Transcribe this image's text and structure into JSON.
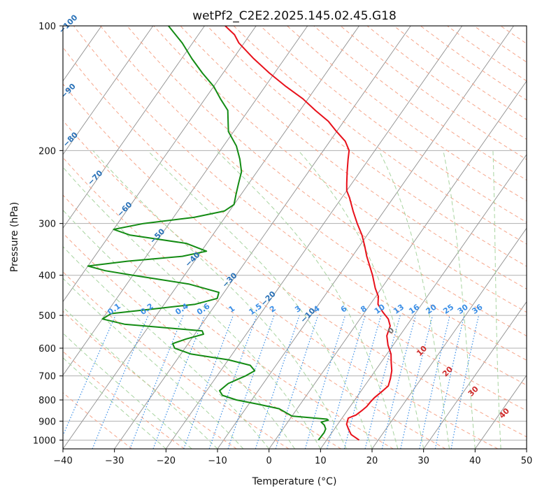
{
  "chart_data": {
    "type": "line",
    "subtype": "skew-t-log-p",
    "title": "wetPf2_C2E2.2025.145.02.45.G18",
    "xlabel": "Temperature (°C)",
    "ylabel": "Pressure (hPa)",
    "xlim": [
      -40,
      50
    ],
    "ylim_hpa": [
      1050,
      100
    ],
    "y_scale": "log",
    "x_ticks": [
      "−40",
      "−30",
      "−20",
      "−10",
      "0",
      "10",
      "20",
      "30",
      "40",
      "50"
    ],
    "x_tick_values": [
      -40,
      -30,
      -20,
      -10,
      0,
      10,
      20,
      30,
      40,
      50
    ],
    "y_ticks": [
      "100",
      "200",
      "300",
      "400",
      "500",
      "600",
      "700",
      "800",
      "900",
      "1000"
    ],
    "y_tick_values": [
      100,
      200,
      300,
      400,
      500,
      600,
      700,
      800,
      900,
      1000
    ],
    "grid": true,
    "series": [
      {
        "color": "#e8101a",
        "points": [
          [
            1000,
            16.3
          ],
          [
            970,
            14
          ],
          [
            940,
            12.7
          ],
          [
            915,
            11.7
          ],
          [
            885,
            11.2
          ],
          [
            870,
            12.3
          ],
          [
            850,
            12.8
          ],
          [
            830,
            13.2
          ],
          [
            810,
            13.3
          ],
          [
            790,
            13.5
          ],
          [
            760,
            14.2
          ],
          [
            740,
            14.6
          ],
          [
            710,
            14
          ],
          [
            680,
            13.2
          ],
          [
            650,
            12
          ],
          [
            620,
            10.8
          ],
          [
            590,
            9
          ],
          [
            560,
            7.5
          ],
          [
            530,
            6.8
          ],
          [
            510,
            5.5
          ],
          [
            490,
            3.4
          ],
          [
            470,
            1.5
          ],
          [
            450,
            0.5
          ],
          [
            430,
            -1.2
          ],
          [
            400,
            -3.5
          ],
          [
            380,
            -5.3
          ],
          [
            360,
            -7.2
          ],
          [
            340,
            -9
          ],
          [
            320,
            -11
          ],
          [
            300,
            -13.5
          ],
          [
            280,
            -16
          ],
          [
            260,
            -18.5
          ],
          [
            250,
            -20
          ],
          [
            240,
            -21
          ],
          [
            225,
            -22.5
          ],
          [
            210,
            -24
          ],
          [
            200,
            -25
          ],
          [
            190,
            -27
          ],
          [
            180,
            -30
          ],
          [
            170,
            -33
          ],
          [
            160,
            -37
          ],
          [
            150,
            -41
          ],
          [
            140,
            -46
          ],
          [
            130,
            -51
          ],
          [
            120,
            -56
          ],
          [
            110,
            -61
          ],
          [
            105,
            -63
          ],
          [
            100,
            -66
          ]
        ]
      },
      {
        "color": "#138b13",
        "points": [
          [
            1000,
            8.4
          ],
          [
            960,
            8.5
          ],
          [
            940,
            8.3
          ],
          [
            920,
            7.5
          ],
          [
            905,
            6.5
          ],
          [
            895,
            7.6
          ],
          [
            890,
            7.2
          ],
          [
            875,
            0
          ],
          [
            860,
            -1.5
          ],
          [
            840,
            -3.5
          ],
          [
            820,
            -8
          ],
          [
            800,
            -13
          ],
          [
            780,
            -16.3
          ],
          [
            760,
            -17.5
          ],
          [
            730,
            -16.8
          ],
          [
            700,
            -14.5
          ],
          [
            680,
            -13.4
          ],
          [
            660,
            -15
          ],
          [
            640,
            -20
          ],
          [
            620,
            -28
          ],
          [
            600,
            -32
          ],
          [
            585,
            -33
          ],
          [
            570,
            -31
          ],
          [
            555,
            -28.3
          ],
          [
            545,
            -29
          ],
          [
            535,
            -37
          ],
          [
            525,
            -45
          ],
          [
            510,
            -50
          ],
          [
            495,
            -49
          ],
          [
            480,
            -40
          ],
          [
            470,
            -34
          ],
          [
            455,
            -30.5
          ],
          [
            440,
            -31
          ],
          [
            420,
            -38
          ],
          [
            400,
            -50
          ],
          [
            390,
            -56
          ],
          [
            380,
            -60
          ],
          [
            370,
            -53
          ],
          [
            360,
            -43
          ],
          [
            350,
            -39
          ],
          [
            335,
            -44
          ],
          [
            320,
            -56
          ],
          [
            310,
            -60
          ],
          [
            300,
            -55
          ],
          [
            290,
            -46
          ],
          [
            280,
            -41
          ],
          [
            270,
            -40
          ],
          [
            255,
            -41
          ],
          [
            240,
            -42
          ],
          [
            225,
            -43
          ],
          [
            210,
            -45
          ],
          [
            195,
            -47.5
          ],
          [
            180,
            -51
          ],
          [
            160,
            -54
          ],
          [
            150,
            -57
          ],
          [
            140,
            -60
          ],
          [
            130,
            -64
          ],
          [
            120,
            -68
          ],
          [
            110,
            -72
          ],
          [
            100,
            -77
          ]
        ]
      }
    ],
    "reference_lines": {
      "dry_adiabat_labels": [
        "−100",
        "−90",
        "−80",
        "−70",
        "−60",
        "−50",
        "−40",
        "−30",
        "−20",
        "−10"
      ],
      "mixing_ratio_labels": [
        "0.1",
        "0.2",
        "0.4",
        "0.6",
        "1",
        "1.5",
        "2",
        "3",
        "4",
        "6",
        "8",
        "10",
        "13",
        "16",
        "20",
        "25",
        "30",
        "36"
      ],
      "moist_adiabat_labels": [
        "0",
        "10",
        "20",
        "30",
        "40"
      ]
    },
    "colors": {
      "temperature": "#e8101a",
      "dewpoint": "#138b13",
      "isotherm": "#8f8f8f",
      "isobar": "#b0b0b0",
      "dry_adiabat": "#f6a58a",
      "moist_adiabat": "#a8d4a0",
      "mixing_ratio": "#3a8ee6",
      "dry_adiabat_label": "#2a72b8",
      "moist_adiabat_label": "#cf2a2a",
      "mixing_ratio_label": "#3a8ee6",
      "freezing_label": "#707070"
    }
  }
}
